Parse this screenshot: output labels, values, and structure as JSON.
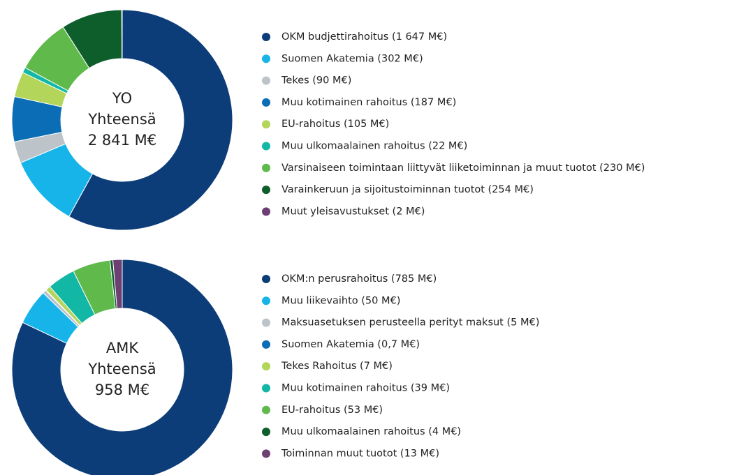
{
  "chart_data": [
    {
      "type": "pie",
      "center_text": [
        "YO",
        "Yhteensä",
        "2 841 M€"
      ],
      "categories": [
        "OKM budjettirahoitus (1 647 M€)",
        "Suomen Akatemia (302 M€)",
        "Tekes (90 M€)",
        "Muu kotimainen rahoitus (187 M€)",
        "EU-rahoitus (105 M€)",
        "Muu ulkomaalainen rahoitus (22 M€)",
        "Varsinaiseen toimintaan liittyvät liiketoiminnan ja muut tuotot (230 M€)",
        "Varainkeruun ja sijoitustoiminnan tuotot (254 M€)",
        "Muut yleisavustukset (2 M€)"
      ],
      "values": [
        1647,
        302,
        90,
        187,
        105,
        22,
        230,
        254,
        2
      ],
      "colors": [
        "#0d3d78",
        "#17b4ea",
        "#bcc3c9",
        "#0a6db5",
        "#b3d55a",
        "#13b7a5",
        "#5fb94b",
        "#0d5e2a",
        "#6d3f73"
      ]
    },
    {
      "type": "pie",
      "center_text": [
        "AMK",
        "Yhteensä",
        "958 M€"
      ],
      "categories": [
        "OKM:n perusrahoitus (785 M€)",
        "Muu liikevaihto (50 M€)",
        "Maksuasetuksen perusteella perityt maksut (5 M€)",
        "Suomen Akatemia (0,7 M€)",
        "Tekes Rahoitus (7 M€)",
        "Muu kotimainen rahoitus (39 M€)",
        "EU-rahoitus (53 M€)",
        "Muu ulkomaalainen rahoitus (4 M€)",
        "Toiminnan muut tuotot (13 M€)"
      ],
      "values": [
        785,
        50,
        5,
        0.7,
        7,
        39,
        53,
        4,
        13
      ],
      "colors": [
        "#0d3d78",
        "#17b4ea",
        "#bcc3c9",
        "#0a6db5",
        "#b3d55a",
        "#13b7a5",
        "#5fb94b",
        "#0d5e2a",
        "#6d3f73"
      ]
    }
  ]
}
